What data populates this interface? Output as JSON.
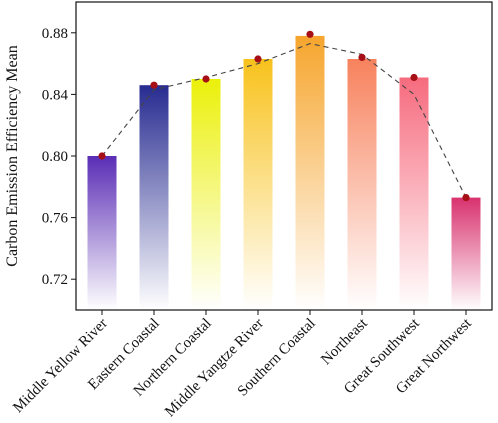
{
  "chart_data": {
    "type": "bar",
    "title": "",
    "xlabel": "",
    "ylabel": "Carbon Emission Efficiency Mean",
    "ylim": [
      0.7,
      0.9
    ],
    "yticks": [
      "0.72",
      "0.76",
      "0.80",
      "0.84",
      "0.88"
    ],
    "ytick_values": [
      0.72,
      0.76,
      0.8,
      0.84,
      0.88
    ],
    "categories": [
      "Middle Yellow River",
      "Eastern Coastal",
      "Northern Coastal",
      "Middle Yangtze River",
      "Southern Coastal",
      "Northeast",
      "Great Southwest",
      "Great Northwest"
    ],
    "values": [
      0.8,
      0.846,
      0.85,
      0.863,
      0.878,
      0.863,
      0.851,
      0.773
    ],
    "bar_colors": [
      "#5a2db5",
      "#272b90",
      "#ebf00a",
      "#f8c21c",
      "#f6a52d",
      "#f7825d",
      "#f66b7e",
      "#d8326e"
    ],
    "point_values": [
      0.8,
      0.846,
      0.85,
      0.863,
      0.879,
      0.864,
      0.851,
      0.773
    ],
    "point_color": "#a50f15",
    "trend_line": {
      "style": "dashed",
      "color": "#444444",
      "values": [
        0.8,
        0.843,
        0.851,
        0.86,
        0.873,
        0.866,
        0.84,
        0.773
      ]
    },
    "grid": false,
    "legend": "none"
  }
}
